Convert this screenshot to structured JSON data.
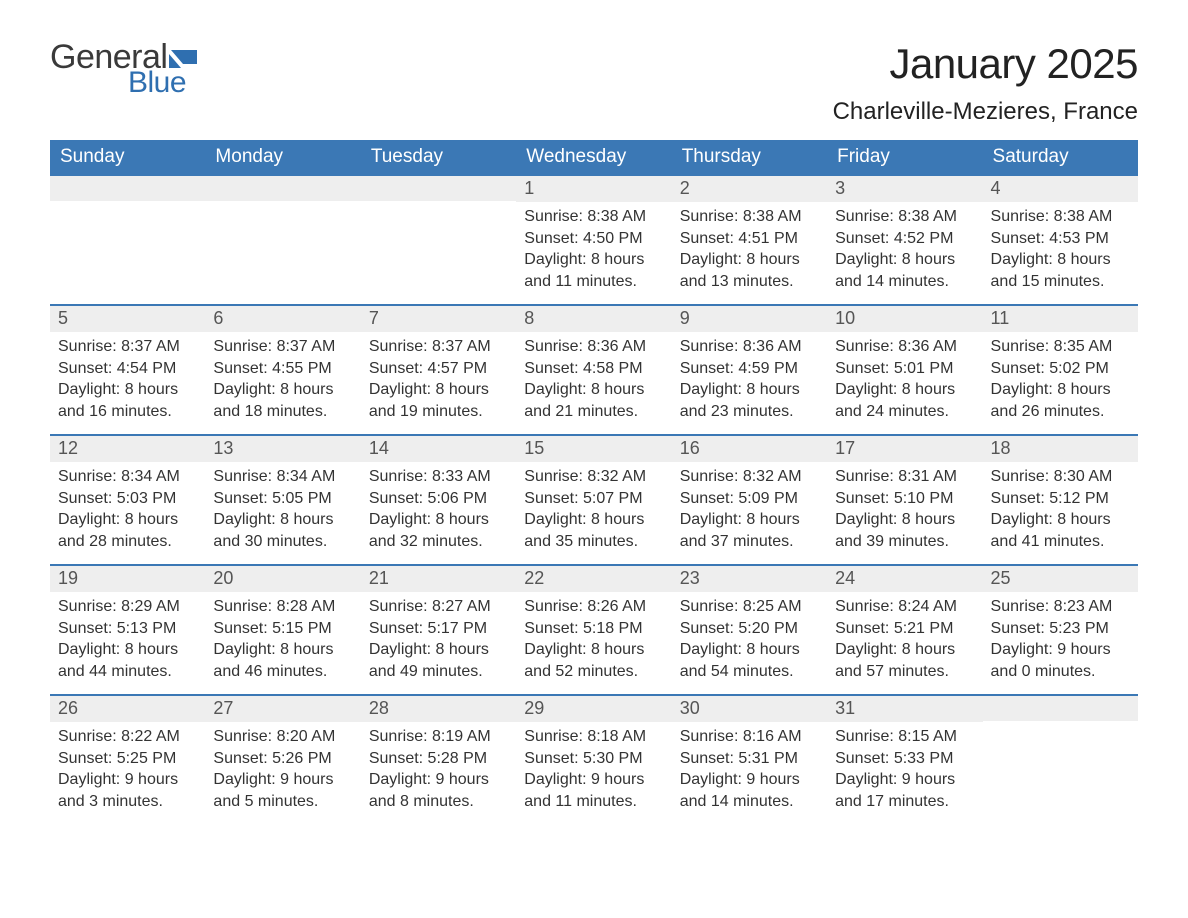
{
  "logo": {
    "word1": "General",
    "word2": "Blue",
    "flag_color": "#2f6fb0",
    "word1_color": "#3a3a3a",
    "word2_color": "#2f6fb0"
  },
  "title": "January 2025",
  "location": "Charleville-Mezieres, France",
  "colors": {
    "header_bg": "#3b78b5",
    "header_text": "#ffffff",
    "daynum_bg": "#eeeeee",
    "row_border": "#3b78b5",
    "page_bg": "#ffffff",
    "body_text": "#333333"
  },
  "day_names": [
    "Sunday",
    "Monday",
    "Tuesday",
    "Wednesday",
    "Thursday",
    "Friday",
    "Saturday"
  ],
  "weeks": [
    [
      {
        "day": "",
        "sunrise": "",
        "sunset": "",
        "daylight1": "",
        "daylight2": ""
      },
      {
        "day": "",
        "sunrise": "",
        "sunset": "",
        "daylight1": "",
        "daylight2": ""
      },
      {
        "day": "",
        "sunrise": "",
        "sunset": "",
        "daylight1": "",
        "daylight2": ""
      },
      {
        "day": "1",
        "sunrise": "Sunrise: 8:38 AM",
        "sunset": "Sunset: 4:50 PM",
        "daylight1": "Daylight: 8 hours",
        "daylight2": "and 11 minutes."
      },
      {
        "day": "2",
        "sunrise": "Sunrise: 8:38 AM",
        "sunset": "Sunset: 4:51 PM",
        "daylight1": "Daylight: 8 hours",
        "daylight2": "and 13 minutes."
      },
      {
        "day": "3",
        "sunrise": "Sunrise: 8:38 AM",
        "sunset": "Sunset: 4:52 PM",
        "daylight1": "Daylight: 8 hours",
        "daylight2": "and 14 minutes."
      },
      {
        "day": "4",
        "sunrise": "Sunrise: 8:38 AM",
        "sunset": "Sunset: 4:53 PM",
        "daylight1": "Daylight: 8 hours",
        "daylight2": "and 15 minutes."
      }
    ],
    [
      {
        "day": "5",
        "sunrise": "Sunrise: 8:37 AM",
        "sunset": "Sunset: 4:54 PM",
        "daylight1": "Daylight: 8 hours",
        "daylight2": "and 16 minutes."
      },
      {
        "day": "6",
        "sunrise": "Sunrise: 8:37 AM",
        "sunset": "Sunset: 4:55 PM",
        "daylight1": "Daylight: 8 hours",
        "daylight2": "and 18 minutes."
      },
      {
        "day": "7",
        "sunrise": "Sunrise: 8:37 AM",
        "sunset": "Sunset: 4:57 PM",
        "daylight1": "Daylight: 8 hours",
        "daylight2": "and 19 minutes."
      },
      {
        "day": "8",
        "sunrise": "Sunrise: 8:36 AM",
        "sunset": "Sunset: 4:58 PM",
        "daylight1": "Daylight: 8 hours",
        "daylight2": "and 21 minutes."
      },
      {
        "day": "9",
        "sunrise": "Sunrise: 8:36 AM",
        "sunset": "Sunset: 4:59 PM",
        "daylight1": "Daylight: 8 hours",
        "daylight2": "and 23 minutes."
      },
      {
        "day": "10",
        "sunrise": "Sunrise: 8:36 AM",
        "sunset": "Sunset: 5:01 PM",
        "daylight1": "Daylight: 8 hours",
        "daylight2": "and 24 minutes."
      },
      {
        "day": "11",
        "sunrise": "Sunrise: 8:35 AM",
        "sunset": "Sunset: 5:02 PM",
        "daylight1": "Daylight: 8 hours",
        "daylight2": "and 26 minutes."
      }
    ],
    [
      {
        "day": "12",
        "sunrise": "Sunrise: 8:34 AM",
        "sunset": "Sunset: 5:03 PM",
        "daylight1": "Daylight: 8 hours",
        "daylight2": "and 28 minutes."
      },
      {
        "day": "13",
        "sunrise": "Sunrise: 8:34 AM",
        "sunset": "Sunset: 5:05 PM",
        "daylight1": "Daylight: 8 hours",
        "daylight2": "and 30 minutes."
      },
      {
        "day": "14",
        "sunrise": "Sunrise: 8:33 AM",
        "sunset": "Sunset: 5:06 PM",
        "daylight1": "Daylight: 8 hours",
        "daylight2": "and 32 minutes."
      },
      {
        "day": "15",
        "sunrise": "Sunrise: 8:32 AM",
        "sunset": "Sunset: 5:07 PM",
        "daylight1": "Daylight: 8 hours",
        "daylight2": "and 35 minutes."
      },
      {
        "day": "16",
        "sunrise": "Sunrise: 8:32 AM",
        "sunset": "Sunset: 5:09 PM",
        "daylight1": "Daylight: 8 hours",
        "daylight2": "and 37 minutes."
      },
      {
        "day": "17",
        "sunrise": "Sunrise: 8:31 AM",
        "sunset": "Sunset: 5:10 PM",
        "daylight1": "Daylight: 8 hours",
        "daylight2": "and 39 minutes."
      },
      {
        "day": "18",
        "sunrise": "Sunrise: 8:30 AM",
        "sunset": "Sunset: 5:12 PM",
        "daylight1": "Daylight: 8 hours",
        "daylight2": "and 41 minutes."
      }
    ],
    [
      {
        "day": "19",
        "sunrise": "Sunrise: 8:29 AM",
        "sunset": "Sunset: 5:13 PM",
        "daylight1": "Daylight: 8 hours",
        "daylight2": "and 44 minutes."
      },
      {
        "day": "20",
        "sunrise": "Sunrise: 8:28 AM",
        "sunset": "Sunset: 5:15 PM",
        "daylight1": "Daylight: 8 hours",
        "daylight2": "and 46 minutes."
      },
      {
        "day": "21",
        "sunrise": "Sunrise: 8:27 AM",
        "sunset": "Sunset: 5:17 PM",
        "daylight1": "Daylight: 8 hours",
        "daylight2": "and 49 minutes."
      },
      {
        "day": "22",
        "sunrise": "Sunrise: 8:26 AM",
        "sunset": "Sunset: 5:18 PM",
        "daylight1": "Daylight: 8 hours",
        "daylight2": "and 52 minutes."
      },
      {
        "day": "23",
        "sunrise": "Sunrise: 8:25 AM",
        "sunset": "Sunset: 5:20 PM",
        "daylight1": "Daylight: 8 hours",
        "daylight2": "and 54 minutes."
      },
      {
        "day": "24",
        "sunrise": "Sunrise: 8:24 AM",
        "sunset": "Sunset: 5:21 PM",
        "daylight1": "Daylight: 8 hours",
        "daylight2": "and 57 minutes."
      },
      {
        "day": "25",
        "sunrise": "Sunrise: 8:23 AM",
        "sunset": "Sunset: 5:23 PM",
        "daylight1": "Daylight: 9 hours",
        "daylight2": "and 0 minutes."
      }
    ],
    [
      {
        "day": "26",
        "sunrise": "Sunrise: 8:22 AM",
        "sunset": "Sunset: 5:25 PM",
        "daylight1": "Daylight: 9 hours",
        "daylight2": "and 3 minutes."
      },
      {
        "day": "27",
        "sunrise": "Sunrise: 8:20 AM",
        "sunset": "Sunset: 5:26 PM",
        "daylight1": "Daylight: 9 hours",
        "daylight2": "and 5 minutes."
      },
      {
        "day": "28",
        "sunrise": "Sunrise: 8:19 AM",
        "sunset": "Sunset: 5:28 PM",
        "daylight1": "Daylight: 9 hours",
        "daylight2": "and 8 minutes."
      },
      {
        "day": "29",
        "sunrise": "Sunrise: 8:18 AM",
        "sunset": "Sunset: 5:30 PM",
        "daylight1": "Daylight: 9 hours",
        "daylight2": "and 11 minutes."
      },
      {
        "day": "30",
        "sunrise": "Sunrise: 8:16 AM",
        "sunset": "Sunset: 5:31 PM",
        "daylight1": "Daylight: 9 hours",
        "daylight2": "and 14 minutes."
      },
      {
        "day": "31",
        "sunrise": "Sunrise: 8:15 AM",
        "sunset": "Sunset: 5:33 PM",
        "daylight1": "Daylight: 9 hours",
        "daylight2": "and 17 minutes."
      },
      {
        "day": "",
        "sunrise": "",
        "sunset": "",
        "daylight1": "",
        "daylight2": ""
      }
    ]
  ]
}
